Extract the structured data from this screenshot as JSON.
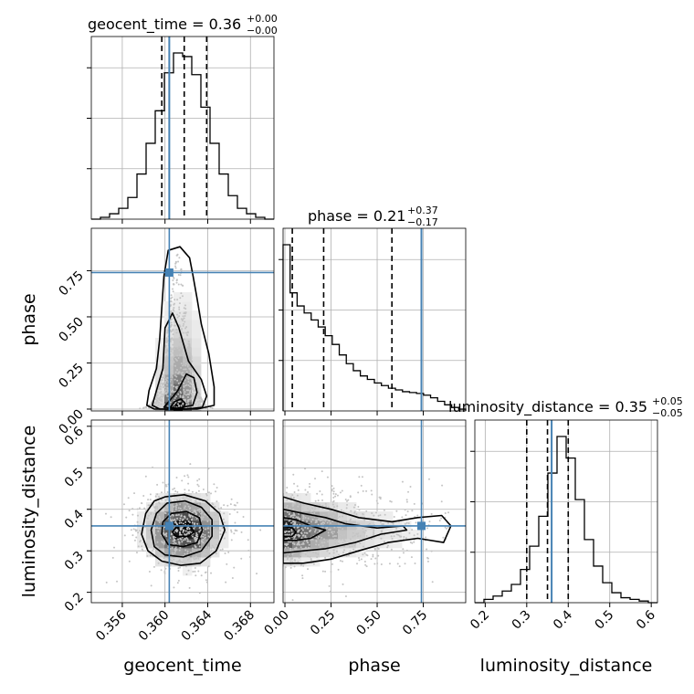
{
  "chart_data": {
    "type": "corner",
    "parameters": [
      "geocent_time",
      "phase",
      "luminosity_distance"
    ],
    "truth_color": "#4682b4",
    "truths": {
      "geocent_time": 0.3604,
      "phase": 0.74,
      "luminosity_distance": 0.36
    },
    "ranges": {
      "geocent_time": [
        0.3531,
        0.3702
      ],
      "phase": [
        -0.01,
        0.98
      ],
      "luminosity_distance": [
        0.175,
        0.615
      ]
    },
    "titles": {
      "geocent_time": {
        "label": "geocent_time = 0.36",
        "plus": "+0.00",
        "minus": "−0.00"
      },
      "phase": {
        "label": "phase = 0.21",
        "plus": "+0.37",
        "minus": "−0.17"
      },
      "luminosity_distance": {
        "label": "luminosity_distance = 0.35",
        "plus": "+0.05",
        "minus": "−0.05"
      }
    },
    "ticks": {
      "geocent_time": [
        "0.356",
        "0.360",
        "0.364",
        "0.368"
      ],
      "phase": [
        "0.00",
        "0.25",
        "0.50",
        "0.75"
      ],
      "luminosity_distance": [
        "0.2",
        "0.3",
        "0.4",
        "0.5",
        "0.6"
      ]
    },
    "quantiles": {
      "geocent_time": [
        0.3597,
        0.3618,
        0.3639
      ],
      "phase": [
        0.04,
        0.21,
        0.58
      ],
      "luminosity_distance": [
        0.3,
        0.35,
        0.4
      ]
    },
    "histograms": {
      "geocent_time": {
        "edges": [
          0.3531,
          0.3702
        ],
        "counts": [
          0,
          1,
          3,
          6,
          12,
          25,
          42,
          60,
          81,
          92,
          90,
          80,
          62,
          42,
          25,
          13,
          6,
          3,
          1,
          0
        ]
      },
      "phase": {
        "edges": [
          -0.01,
          0.98
        ],
        "counts": [
          190,
          135,
          120,
          112,
          104,
          96,
          86,
          76,
          64,
          54,
          46,
          40,
          36,
          32,
          29,
          26,
          24,
          22,
          21,
          20,
          18,
          15,
          11,
          7,
          4,
          2
        ]
      },
      "luminosity_distance": {
        "edges": [
          0.175,
          0.615
        ],
        "counts": [
          0,
          2,
          4,
          7,
          11,
          20,
          34,
          52,
          78,
          100,
          87,
          62,
          38,
          22,
          12,
          6,
          3,
          2,
          1,
          0
        ]
      }
    },
    "contours_2d": {
      "phase_vs_geocent_time": [
        [
          [
            0.3603,
            0.86
          ],
          [
            0.3614,
            0.88
          ],
          [
            0.3623,
            0.82
          ],
          [
            0.3626,
            0.73
          ],
          [
            0.363,
            0.6
          ],
          [
            0.3634,
            0.46
          ],
          [
            0.3641,
            0.3
          ],
          [
            0.3646,
            0.12
          ],
          [
            0.3646,
            0.02
          ],
          [
            0.363,
            0.0
          ],
          [
            0.359,
            0.0
          ],
          [
            0.3583,
            0.02
          ],
          [
            0.3585,
            0.1
          ],
          [
            0.3592,
            0.22
          ],
          [
            0.3595,
            0.38
          ],
          [
            0.3597,
            0.55
          ],
          [
            0.3599,
            0.72
          ]
        ],
        [
          [
            0.3598,
            0.22
          ],
          [
            0.36,
            0.44
          ],
          [
            0.3607,
            0.52
          ],
          [
            0.3613,
            0.44
          ],
          [
            0.3622,
            0.26
          ],
          [
            0.3634,
            0.16
          ],
          [
            0.3639,
            0.07
          ],
          [
            0.3635,
            0.01
          ],
          [
            0.362,
            0.0
          ],
          [
            0.3595,
            0.0
          ],
          [
            0.3588,
            0.02
          ],
          [
            0.3592,
            0.1
          ]
        ],
        [
          [
            0.3605,
            0.05
          ],
          [
            0.3612,
            0.1
          ],
          [
            0.362,
            0.19
          ],
          [
            0.3627,
            0.17
          ],
          [
            0.363,
            0.09
          ],
          [
            0.3626,
            0.02
          ],
          [
            0.3612,
            0.005
          ],
          [
            0.3599,
            0.01
          ]
        ],
        [
          [
            0.3604,
            0.0
          ],
          [
            0.3609,
            0.04
          ],
          [
            0.3615,
            0.055
          ],
          [
            0.3619,
            0.03
          ],
          [
            0.3616,
            0.0
          ]
        ]
      ],
      "luminosity_distance_vs_geocent_time": [
        [
          [
            0.36,
            0.43
          ],
          [
            0.3618,
            0.435
          ],
          [
            0.3638,
            0.42
          ],
          [
            0.3651,
            0.39
          ],
          [
            0.3656,
            0.35
          ],
          [
            0.3648,
            0.3
          ],
          [
            0.3633,
            0.27
          ],
          [
            0.3615,
            0.265
          ],
          [
            0.3597,
            0.275
          ],
          [
            0.3584,
            0.3
          ],
          [
            0.3578,
            0.34
          ],
          [
            0.3582,
            0.39
          ],
          [
            0.359,
            0.42
          ]
        ],
        [
          [
            0.3602,
            0.415
          ],
          [
            0.3619,
            0.42
          ],
          [
            0.3634,
            0.405
          ],
          [
            0.3644,
            0.375
          ],
          [
            0.3644,
            0.335
          ],
          [
            0.3634,
            0.3
          ],
          [
            0.3617,
            0.285
          ],
          [
            0.36,
            0.29
          ],
          [
            0.359,
            0.31
          ],
          [
            0.3587,
            0.35
          ],
          [
            0.3592,
            0.39
          ]
        ],
        [
          [
            0.3606,
            0.39
          ],
          [
            0.362,
            0.395
          ],
          [
            0.3632,
            0.38
          ],
          [
            0.3635,
            0.35
          ],
          [
            0.363,
            0.32
          ],
          [
            0.3617,
            0.31
          ],
          [
            0.3603,
            0.315
          ],
          [
            0.3597,
            0.34
          ],
          [
            0.3598,
            0.37
          ]
        ],
        [
          [
            0.3611,
            0.36
          ],
          [
            0.3624,
            0.36
          ],
          [
            0.3627,
            0.345
          ],
          [
            0.3622,
            0.335
          ],
          [
            0.361,
            0.335
          ],
          [
            0.3607,
            0.345
          ]
        ]
      ],
      "luminosity_distance_vs_phase": [
        [
          [
            -0.01,
            0.43
          ],
          [
            0.1,
            0.415
          ],
          [
            0.25,
            0.4
          ],
          [
            0.4,
            0.38
          ],
          [
            0.58,
            0.37
          ],
          [
            0.72,
            0.38
          ],
          [
            0.85,
            0.385
          ],
          [
            0.9,
            0.36
          ],
          [
            0.86,
            0.32
          ],
          [
            0.72,
            0.33
          ],
          [
            0.56,
            0.32
          ],
          [
            0.4,
            0.3
          ],
          [
            0.25,
            0.28
          ],
          [
            0.1,
            0.27
          ],
          [
            -0.01,
            0.27
          ]
        ],
        [
          [
            -0.01,
            0.4
          ],
          [
            0.1,
            0.39
          ],
          [
            0.22,
            0.38
          ],
          [
            0.33,
            0.365
          ],
          [
            0.5,
            0.355
          ],
          [
            0.64,
            0.36
          ],
          [
            0.66,
            0.35
          ],
          [
            0.52,
            0.34
          ],
          [
            0.38,
            0.32
          ],
          [
            0.22,
            0.305
          ],
          [
            0.1,
            0.3
          ],
          [
            -0.01,
            0.295
          ]
        ],
        [
          [
            -0.01,
            0.38
          ],
          [
            0.06,
            0.375
          ],
          [
            0.14,
            0.36
          ],
          [
            0.22,
            0.35
          ],
          [
            0.14,
            0.33
          ],
          [
            0.06,
            0.325
          ],
          [
            -0.01,
            0.325
          ]
        ],
        [
          [
            -0.01,
            0.36
          ],
          [
            0.04,
            0.355
          ],
          [
            0.06,
            0.345
          ],
          [
            0.04,
            0.335
          ],
          [
            -0.01,
            0.335
          ]
        ]
      ]
    }
  }
}
